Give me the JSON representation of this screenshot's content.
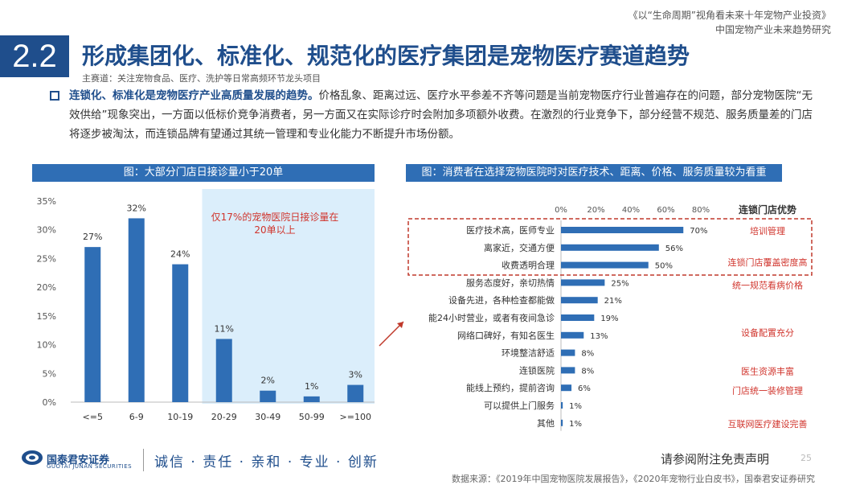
{
  "header": {
    "line1": "《以“生命周期”视角看未来十年宠物产业投资》",
    "line2": "中国宠物产业未来趋势研究"
  },
  "section_number": "2.2",
  "title": "形成集团化、标准化、规范化的医疗集团是宠物医疗赛道趋势",
  "subtitle": "主赛道：关注宠物食品、医疗、洗护等日常高频环节龙头项目",
  "body": {
    "highlight": "连锁化、标准化是宠物医疗产业高质量发展的趋势。",
    "text": "价格乱象、距离过远、医疗水平参差不齐等问题是当前宠物医疗行业普遍存在的问题，部分宠物医院“无效供给”现象突出，一方面以低标价竞争消费者，另一方面又在实际诊疗时会附加多项额外收费。在激烈的行业竞争下，部分经营不规范、服务质量差的门店将逐步被淘汰，而连锁品牌有望通过其统一管理和专业化能力不断提升市场份额。"
  },
  "colors": {
    "primary": "#1f4e8c",
    "bar": "#2f6eb5",
    "highlight_bg": "#dbeefb",
    "red": "#c0392b",
    "callout": "#d0342c"
  },
  "chart_data": [
    {
      "type": "bar",
      "title": "图：大部分门店日接诊量小于20单",
      "categories": [
        "<=5",
        "6-9",
        "10-19",
        "20-29",
        "30-49",
        "50-99",
        ">=100"
      ],
      "values": [
        27,
        32,
        24,
        11,
        2,
        1,
        3
      ],
      "value_labels": [
        "27%",
        "32%",
        "24%",
        "11%",
        "2%",
        "1%",
        "3%"
      ],
      "ylim": [
        0,
        35
      ],
      "yticks": [
        "0%",
        "5%",
        "10%",
        "15%",
        "20%",
        "25%",
        "30%",
        "35%"
      ],
      "highlight_categories": [
        "20-29",
        "30-49",
        "50-99",
        ">=100"
      ],
      "annotation": "仅17%的宠物医院日接诊量在20单以上"
    },
    {
      "type": "bar",
      "orientation": "horizontal",
      "title": "图：消费者在选择宠物医院时对医疗技术、距离、价格、服务质量较为看重",
      "categories": [
        "医疗技术高，医师专业",
        "离家近，交通方便",
        "收费透明合理",
        "服务态度好，亲切热情",
        "设备先进，各种检查都能做",
        "能24小时营业，或者有夜间急诊",
        "网络口碑好，有知名医生",
        "环境整洁舒适",
        "连锁医院",
        "能线上预约，提前咨询",
        "可以提供上门服务",
        "其他"
      ],
      "values": [
        70,
        56,
        50,
        25,
        21,
        19,
        13,
        8,
        8,
        6,
        1,
        1
      ],
      "value_labels": [
        "70%",
        "56%",
        "50%",
        "25%",
        "21%",
        "19%",
        "13%",
        "8%",
        "8%",
        "6%",
        "1%",
        "1%"
      ],
      "xlim": [
        0,
        80
      ],
      "xticks": [
        "0%",
        "20%",
        "40%",
        "60%",
        "80%"
      ],
      "advantage_header": "连锁门店优势",
      "advantages": [
        "培训管理",
        "连锁门店覆盖密度高",
        "统一规范看病价格",
        "设备配置充分",
        "医生资源丰富",
        "门店统一装修管理",
        "互联网医疗建设完善"
      ]
    }
  ],
  "footer": {
    "logo_text": "国泰君安证券",
    "logo_sub": "GUOTAI JUNAN SECURITIES",
    "slogan": "诚信 · 责任 · 亲和 · 专业 · 创新",
    "disclaimer": "请参阅附注免责声明",
    "page": "25",
    "source": "数据来源：《2019年中国宠物医院发展报告》，《2020年宠物行业白皮书》，国泰君安证券研究"
  }
}
